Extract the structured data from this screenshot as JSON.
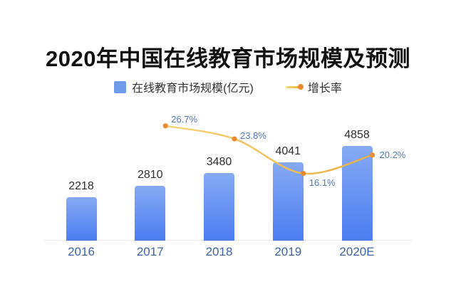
{
  "title": "2020年中国在线教育市场规模及预测",
  "legend": {
    "items": [
      {
        "label": "在线教育市场规模(亿元)",
        "swatch": "bar"
      },
      {
        "label": "增长率",
        "swatch": "line"
      }
    ]
  },
  "colors": {
    "background": "#ffffff",
    "title_text": "#111111",
    "legend_text": "#333333",
    "legend_square": "#6f9bec",
    "bar_gradient_top": "#86aaf2",
    "bar_gradient_bottom": "#4b7df1",
    "line_gradient_start": "#f6d478",
    "line_gradient_end": "#efaf3c",
    "dot": "#ed8c2f",
    "percent_label_text": "#5679be",
    "axis_label_text": "#3c63a5",
    "value_label_text": "#2f2f2f",
    "baseline": "#ebebee"
  },
  "chart_data": {
    "type": "bar",
    "title": "2020年中国在线教育市场规模及预测",
    "categories": [
      "2016",
      "2017",
      "2018",
      "2019",
      "2020E"
    ],
    "series": [
      {
        "name": "在线教育市场规模(亿元)",
        "type": "bar",
        "values": [
          2218,
          2810,
          3480,
          4041,
          4858
        ],
        "data_labels": [
          "2218",
          "2810",
          "3480",
          "4041",
          "4858"
        ]
      },
      {
        "name": "增长率",
        "type": "line",
        "unit": "%",
        "categories": [
          "2017",
          "2018",
          "2019",
          "2020E"
        ],
        "values": [
          26.7,
          23.8,
          16.1,
          20.2
        ],
        "data_labels": [
          "26.7%",
          "23.8%",
          "16.1%",
          "20.2%"
        ]
      }
    ],
    "xlabel": "",
    "ylabel": "",
    "grid": false,
    "y_axis_visible": false,
    "legend_position": "top"
  }
}
